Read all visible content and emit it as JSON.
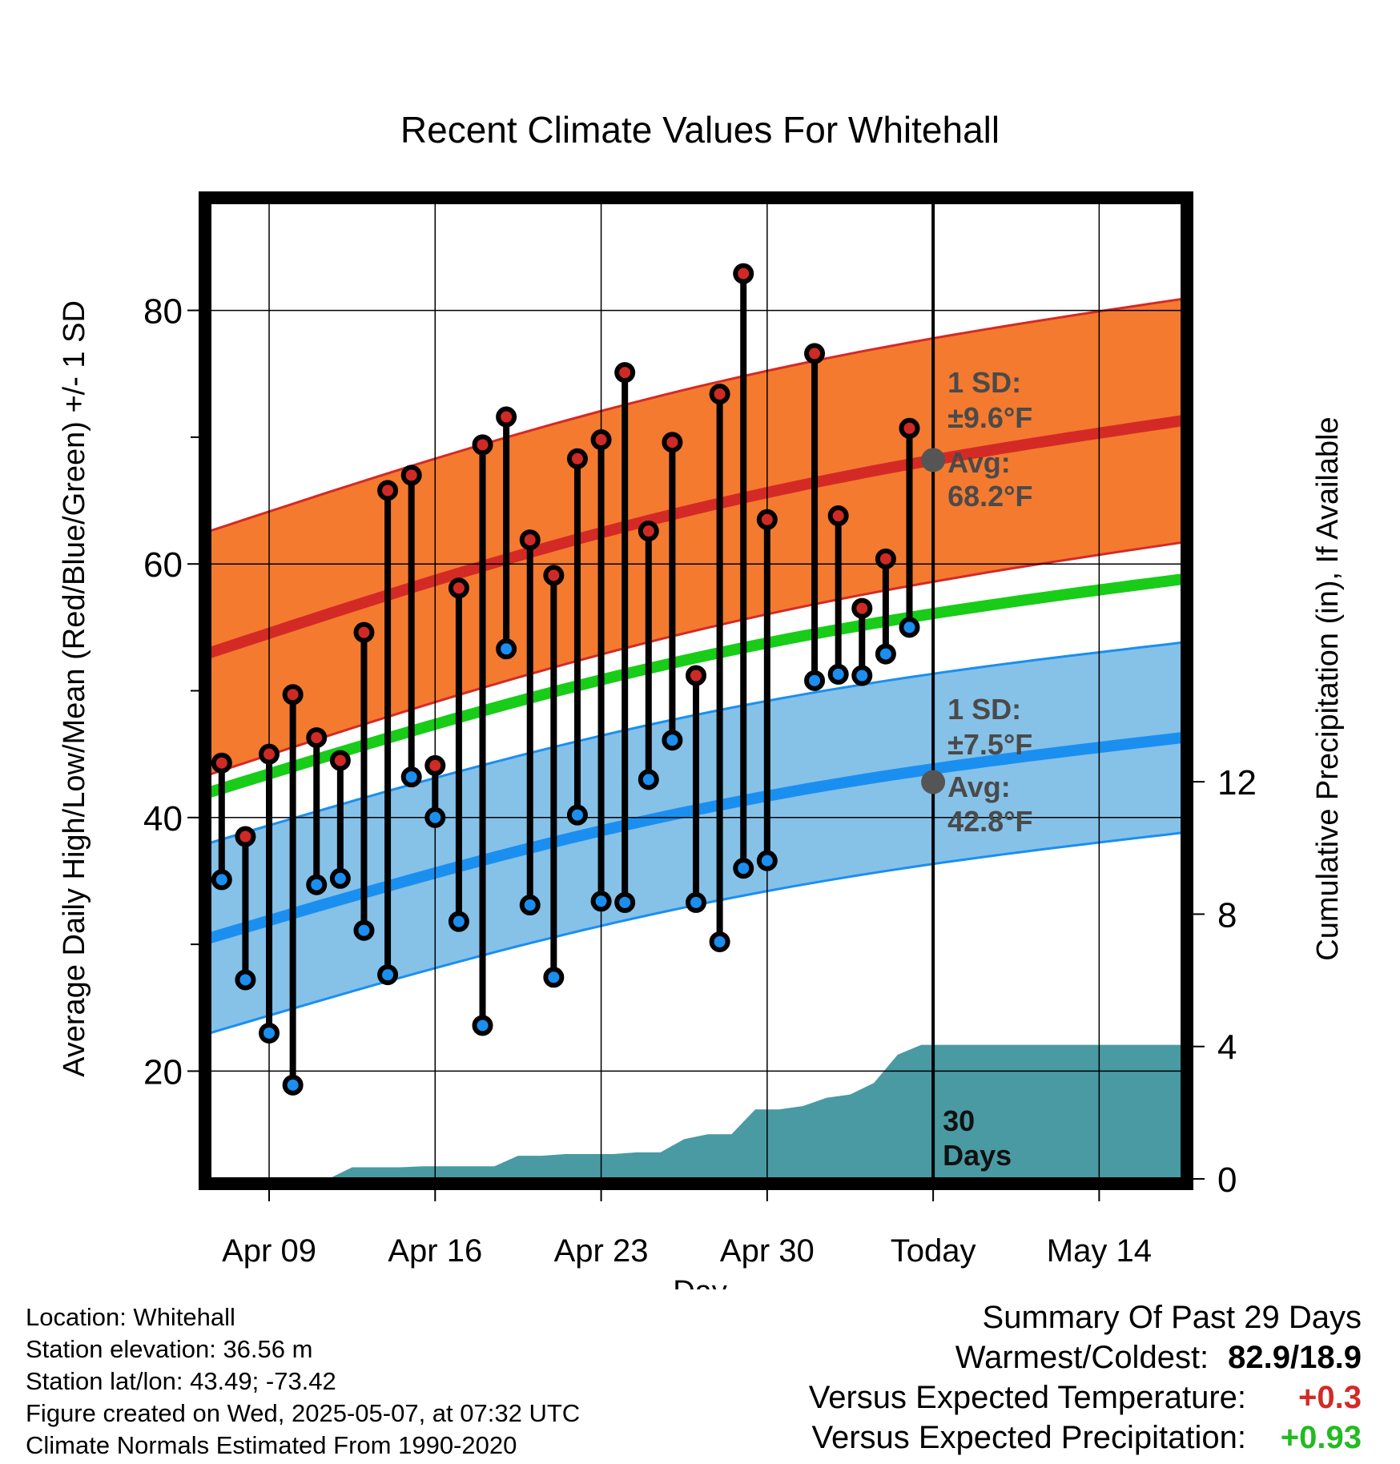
{
  "chart_data": {
    "type": "line",
    "title": "Recent Climate Values For Whitehall",
    "xlabel": "Day",
    "ylabel_left": "Average Daily High/Low/Mean (Red/Blue/Green) +/- 1 SD",
    "ylabel_right": "Cumulative Precipitation (in), If Available",
    "x_range": [
      -2.5,
      38.5
    ],
    "ylim": [
      11.5,
      88.5
    ],
    "y_ticks": [
      20,
      40,
      60,
      80
    ],
    "y_minor_ticks": [
      30,
      50,
      70
    ],
    "precip_ylim": [
      0,
      29.5
    ],
    "precip_ticks": [
      0,
      4,
      8,
      12
    ],
    "x_tick_positions": [
      0,
      7,
      14,
      21,
      28,
      35
    ],
    "x_tick_labels": [
      "Apr 09",
      "Apr 16",
      "Apr 23",
      "Apr 30",
      "Today",
      "May 14"
    ],
    "today_index": 28,
    "day_index": [
      -2,
      -1,
      0,
      1,
      2,
      3,
      4,
      5,
      6,
      7,
      8,
      9,
      10,
      11,
      12,
      13,
      14,
      15,
      16,
      17,
      18,
      19,
      20,
      21,
      22,
      23,
      24,
      25,
      26,
      27
    ],
    "highs": [
      44.3,
      38.5,
      45.0,
      49.7,
      46.3,
      44.5,
      54.6,
      65.8,
      67.0,
      44.1,
      58.1,
      69.4,
      71.6,
      61.9,
      59.1,
      68.3,
      69.8,
      75.1,
      62.6,
      69.6,
      51.2,
      73.4,
      82.9,
      63.5,
      null,
      76.6,
      63.8,
      56.5,
      60.4,
      70.7
    ],
    "lows": [
      35.1,
      27.2,
      23.0,
      18.9,
      34.7,
      35.2,
      31.1,
      27.6,
      43.2,
      40.0,
      31.8,
      23.6,
      53.3,
      33.1,
      27.4,
      40.2,
      33.4,
      33.3,
      43.0,
      46.1,
      33.3,
      30.2,
      36.0,
      36.6,
      null,
      50.8,
      51.3,
      51.2,
      52.9,
      55.0
    ],
    "normal_high": {
      "start": 53.0,
      "end": 71.3,
      "today": 68.2,
      "sd": 9.6
    },
    "normal_low": {
      "start": 30.5,
      "end": 46.3,
      "today": 42.8,
      "sd": 7.5
    },
    "normal_mean": {
      "start": 42.0,
      "end": 58.8
    },
    "precip_x": [
      1.5,
      2.5,
      3.5,
      4.5,
      5.5,
      6.5,
      7.5,
      8.5,
      9.5,
      10.5,
      11.5,
      12.5,
      13.5,
      14.5,
      15.5,
      16.5,
      17.5,
      18.5,
      19.5,
      20.5,
      21.5,
      22.5,
      23.5,
      24.5,
      25.5,
      26.5,
      27.5,
      28.5
    ],
    "precip_cumulative": [
      0.0,
      0.0,
      0.35,
      0.35,
      0.35,
      0.38,
      0.38,
      0.38,
      0.38,
      0.7,
      0.7,
      0.75,
      0.75,
      0.75,
      0.8,
      0.8,
      1.2,
      1.35,
      1.35,
      2.1,
      2.1,
      2.2,
      2.45,
      2.55,
      2.9,
      3.75,
      4.05,
      4.05
    ],
    "precip_total": 4.05,
    "annotations": {
      "today_label": "30\nDays",
      "high_sd_label": "1 SD:",
      "high_sd_value": "±9.6°F",
      "high_avg_label": "Avg:",
      "high_avg_value": "68.2°F",
      "low_sd_label": "1 SD:",
      "low_sd_value": "±7.5°F",
      "low_avg_label": "Avg:",
      "low_avg_value": "42.8°F"
    },
    "colors": {
      "high_band": "#f47a2f",
      "high_line": "#d42a26",
      "low_band": "#86c1e8",
      "low_line": "#1a8ff0",
      "mean_line": "#18cc18",
      "precip": "#4a9aa3",
      "high_dot": "#d02a26",
      "low_dot": "#1a8ff0",
      "marker_grey": "#555555"
    }
  },
  "station_info": [
    "Location: Whitehall",
    "Station elevation: 36.56 m",
    "Station lat/lon: 43.49; -73.42",
    "Figure created on Wed, 2025-05-07, at 07:32 UTC",
    "Climate Normals Estimated From 1990-2020"
  ],
  "summary": {
    "title": "Summary Of Past 29 Days",
    "warmest_coldest_label": "Warmest/Coldest:",
    "warmest_coldest_value": "82.9/18.9",
    "temp_label": "Versus Expected Temperature:",
    "temp_value": "+0.3",
    "temp_color": "#d42a26",
    "precip_label": "Versus Expected Precipitation:",
    "precip_value": "+0.93",
    "precip_color": "#22bb22"
  }
}
